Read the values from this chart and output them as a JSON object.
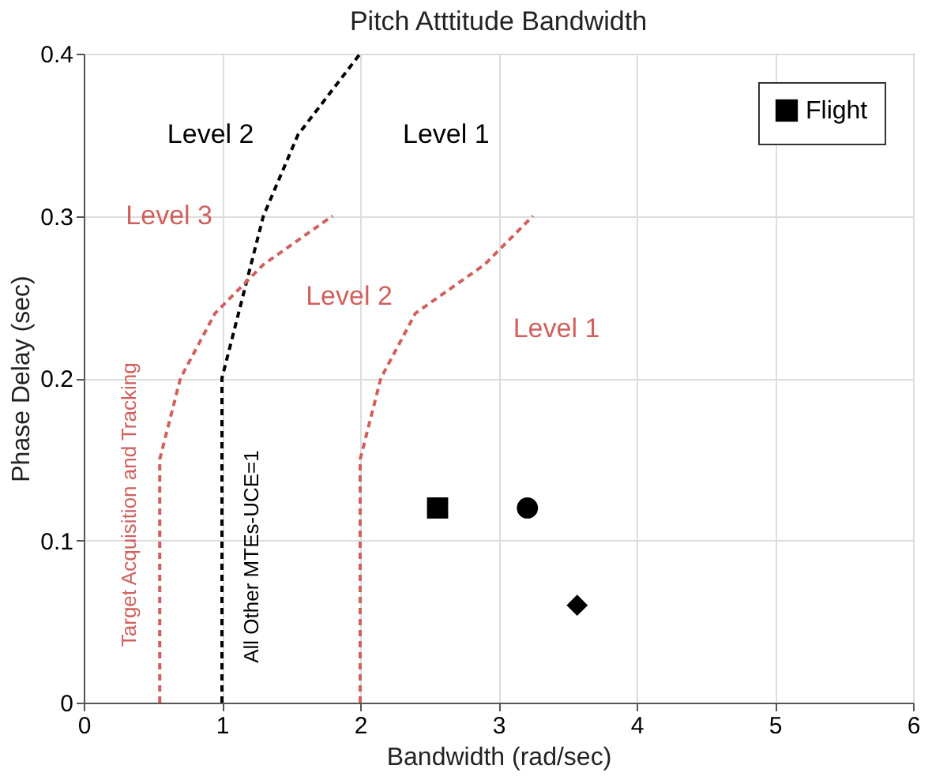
{
  "chart_data": {
    "type": "line",
    "title": "Pitch Atttitude Bandwidth",
    "xlabel": "Bandwidth (rad/sec)",
    "ylabel": "Phase Delay (sec)",
    "xlim": [
      0,
      6
    ],
    "xticks": [
      0,
      1,
      2,
      3,
      4,
      5,
      6
    ],
    "ylim": [
      0,
      0.4
    ],
    "yticks": [
      {
        "value": 0,
        "label": "0"
      },
      0.1,
      0.2,
      0.3,
      0.4
    ],
    "grid": true,
    "legend": "top right",
    "series": [
      {
        "type": "line",
        "line_style": "dashed",
        "color": "#000000",
        "x": [
          1.0,
          1.0,
          1.15,
          1.3,
          1.55,
          2.0
        ],
        "values": [
          0,
          0.2,
          0.25,
          0.3,
          0.35,
          0.4
        ]
      },
      {
        "type": "line",
        "line_style": "dashed",
        "color": "#d0605e",
        "x": [
          0.55,
          0.55,
          0.7,
          0.95,
          1.3,
          1.8
        ],
        "values": [
          0,
          0.15,
          0.2,
          0.24,
          0.27,
          0.3
        ]
      },
      {
        "type": "line",
        "line_style": "dashed",
        "color": "#d0605e",
        "x": [
          2.0,
          2.0,
          2.15,
          2.4,
          2.9,
          3.25
        ],
        "values": [
          0,
          0.15,
          0.2,
          0.24,
          0.27,
          0.3
        ]
      },
      {
        "type": "scatter",
        "name": "Flight",
        "color": "#000000",
        "marker": "square",
        "x": [
          2.56
        ],
        "values": [
          0.12
        ]
      },
      {
        "type": "scatter",
        "color": "#000000",
        "marker": "circle",
        "x": [
          3.21
        ],
        "values": [
          0.12
        ]
      },
      {
        "type": "scatter",
        "color": "#000000",
        "marker": "diamond",
        "x": [
          3.57
        ],
        "values": [
          0.06
        ]
      }
    ],
    "annotations": [
      "Level 2",
      "Level 1",
      "Level 3",
      "Level 2",
      "Level 1",
      "Target Acquisition and Tracking",
      "All Other MTEs-UCE=1"
    ]
  }
}
